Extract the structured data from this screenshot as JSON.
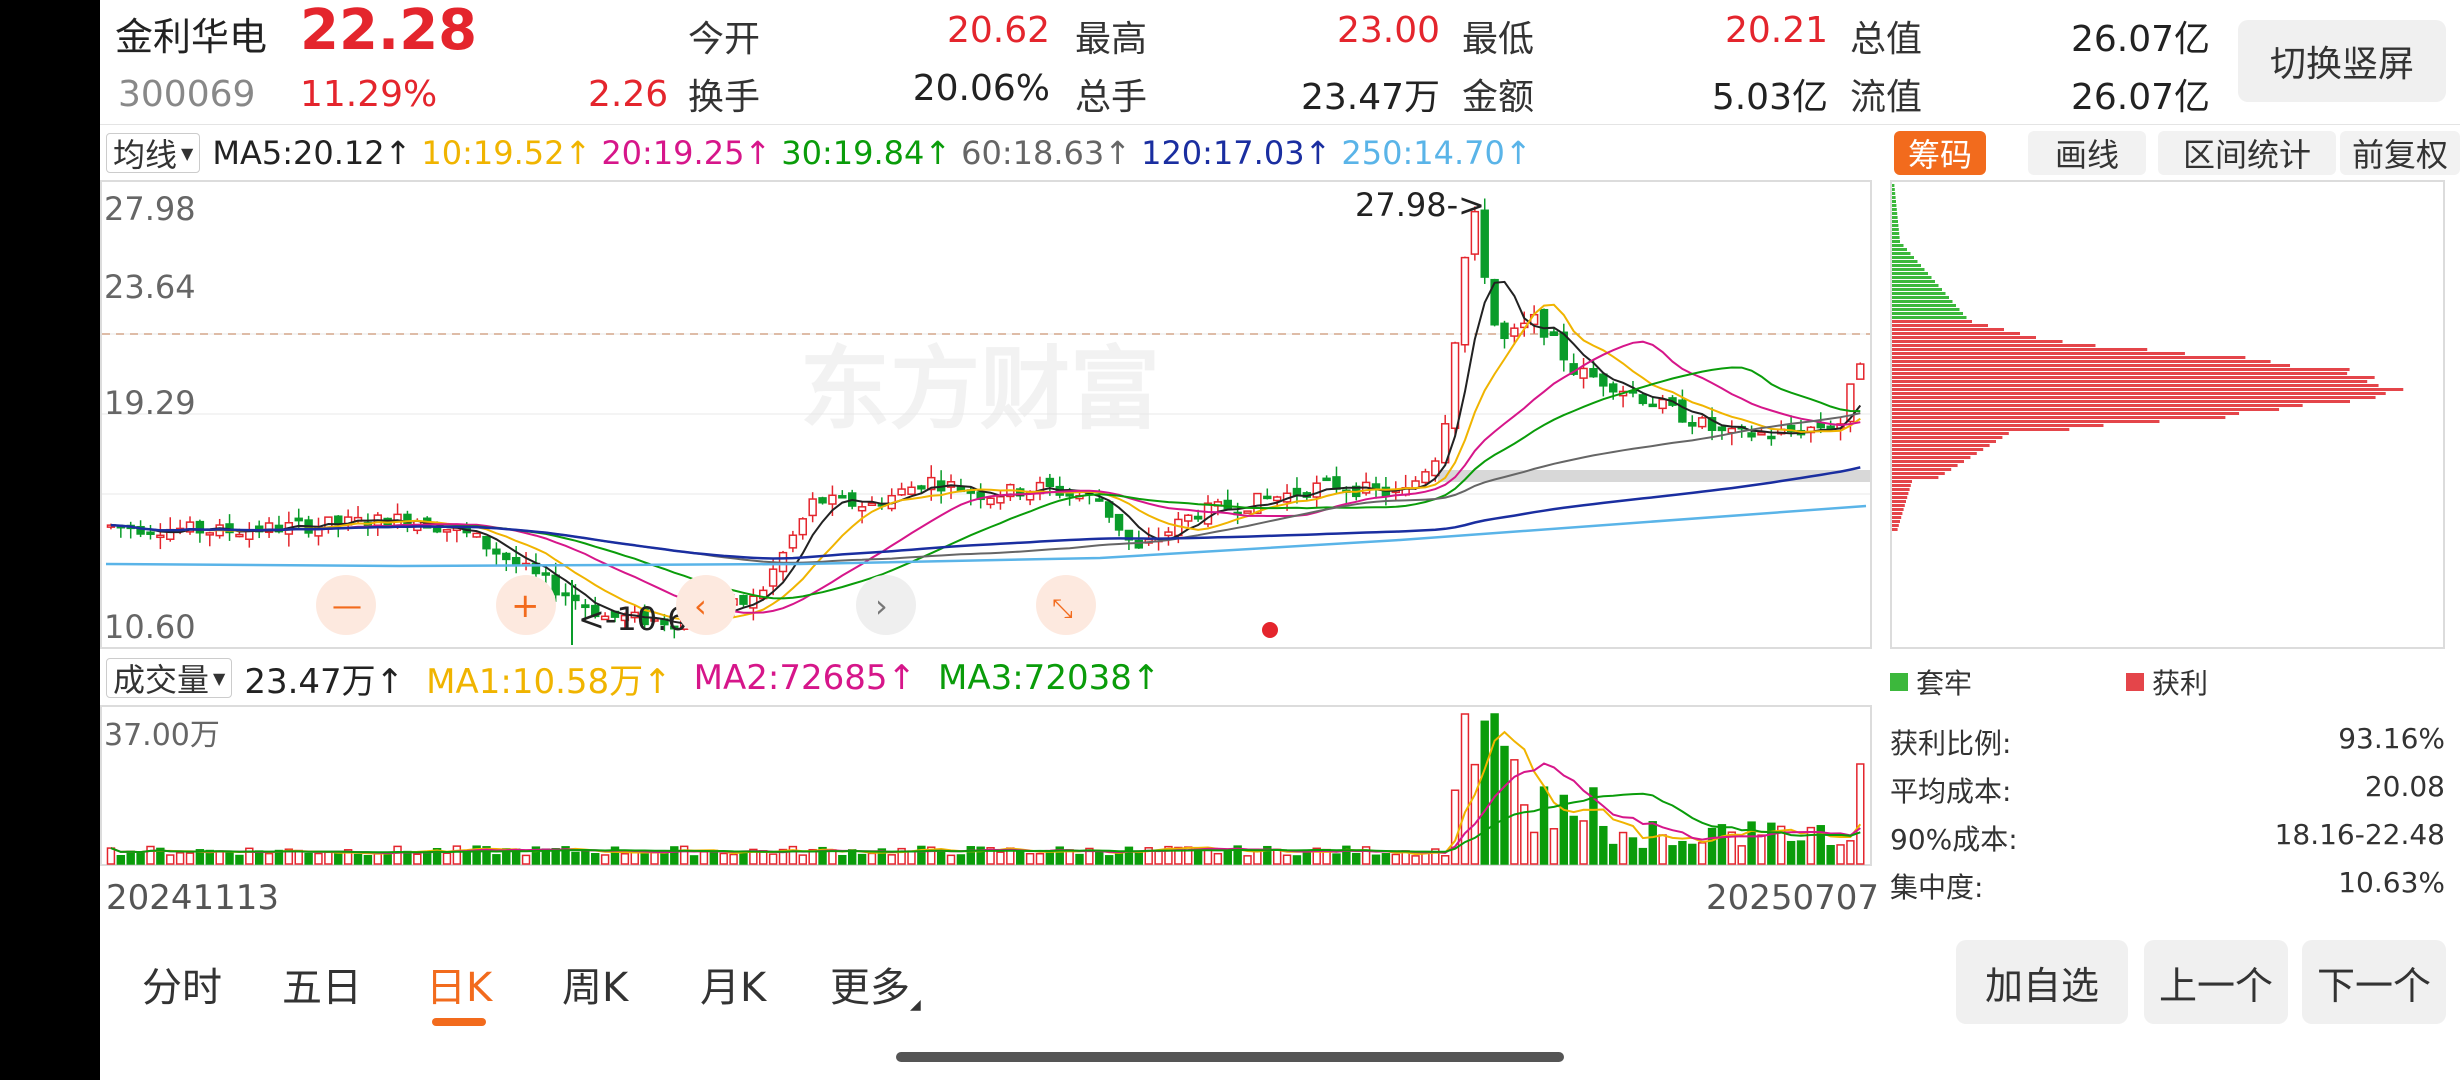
{
  "header": {
    "name": "金利华电",
    "price": "22.28",
    "code": "300069",
    "pct": "11.29%",
    "change": "2.26",
    "fields": [
      {
        "label": "今开",
        "value": "20.62",
        "color": "red"
      },
      {
        "label": "最高",
        "value": "23.00",
        "color": "red"
      },
      {
        "label": "最低",
        "value": "20.21",
        "color": "red"
      },
      {
        "label": "总值",
        "value": "26.07亿",
        "color": "dark"
      },
      {
        "label": "换手",
        "value": "20.06%",
        "color": "dark"
      },
      {
        "label": "总手",
        "value": "23.47万",
        "color": "dark"
      },
      {
        "label": "金额",
        "value": "5.03亿",
        "color": "dark"
      },
      {
        "label": "流值",
        "value": "26.07亿",
        "color": "dark"
      }
    ],
    "switch_label": "切换竖屏"
  },
  "ma_legend": {
    "selector": "均线",
    "items": [
      {
        "text": "MA5:20.12↑",
        "color": "#222222"
      },
      {
        "text": "10:19.52↑",
        "color": "#f0b400"
      },
      {
        "text": "20:19.25↑",
        "color": "#d6168a"
      },
      {
        "text": "30:19.84↑",
        "color": "#0a9c0a"
      },
      {
        "text": "60:18.63↑",
        "color": "#666666"
      },
      {
        "text": "120:17.03↑",
        "color": "#1a2ea0"
      },
      {
        "text": "250:14.70↑",
        "color": "#5ab4e8"
      }
    ]
  },
  "right_tabs": [
    "筹码",
    "画线",
    "区间统计",
    "前复权"
  ],
  "kline": {
    "y_labels": [
      "27.98",
      "23.64",
      "19.29",
      "10.60"
    ],
    "max_annotation": "27.98->",
    "min_annotation": "<-10.60",
    "watermark": "东方财富"
  },
  "volume": {
    "selector": "成交量",
    "items": [
      {
        "text": "23.47万↑",
        "color": "#222222"
      },
      {
        "text": "MA1:10.58万↑",
        "color": "#f0b400"
      },
      {
        "text": "MA2:72685↑",
        "color": "#d6168a"
      },
      {
        "text": "MA3:72038↑",
        "color": "#0a9c0a"
      }
    ],
    "y_label": "37.00万"
  },
  "dates": {
    "start": "20241113",
    "end": "20250707"
  },
  "chips": {
    "legend_trapped": "套牢",
    "legend_profit": "获利",
    "stats": [
      {
        "label": "获利比例:",
        "value": "93.16%"
      },
      {
        "label": "平均成本:",
        "value": "20.08"
      },
      {
        "label": "90%成本:",
        "value": "18.16-22.48"
      },
      {
        "label": "集中度:",
        "value": "10.63%"
      }
    ]
  },
  "periods": [
    "分时",
    "五日",
    "日K",
    "周K",
    "月K",
    "更多"
  ],
  "active_period": "日K",
  "bottom_buttons": [
    "加自选",
    "上一个",
    "下一个"
  ],
  "colors": {
    "up": "#e4252d",
    "down": "#0a9c2a",
    "accent": "#f26b1d"
  }
}
